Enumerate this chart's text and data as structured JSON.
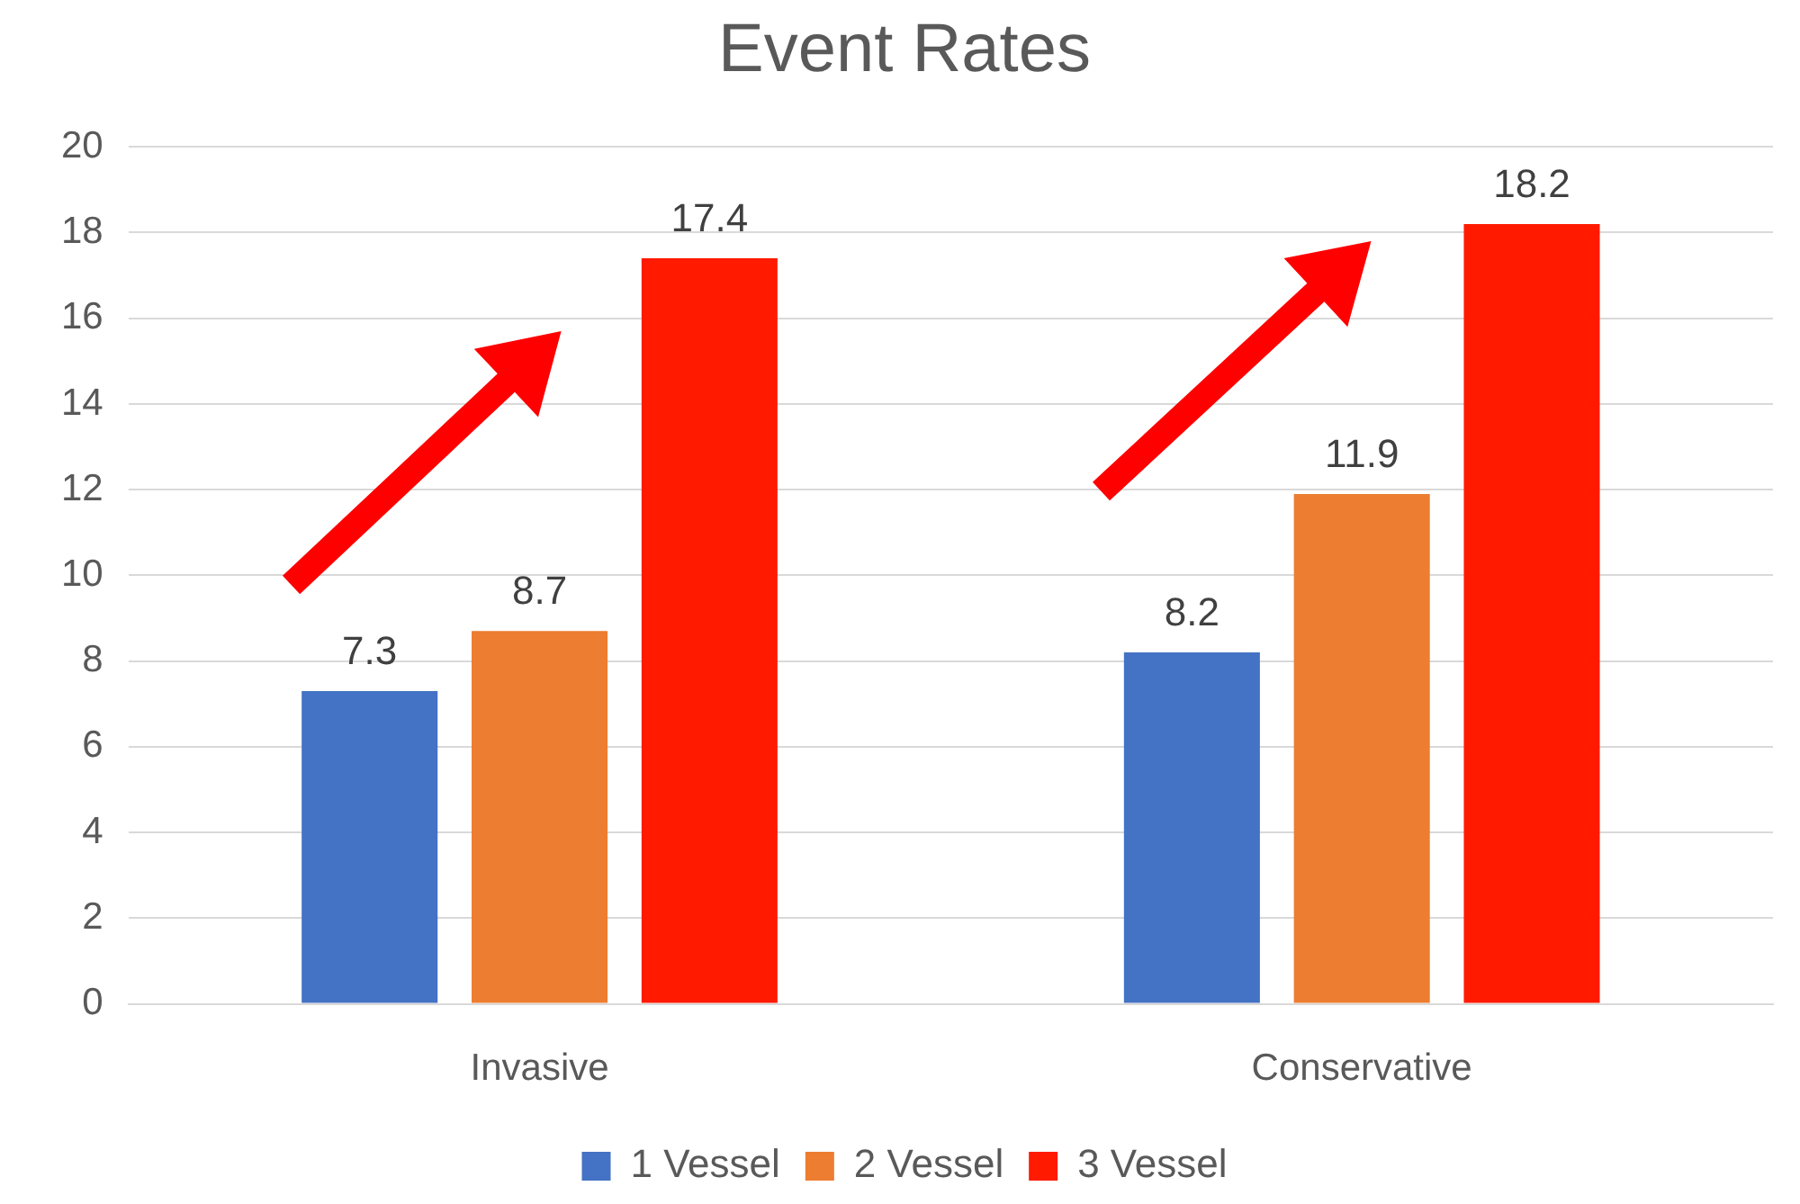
{
  "chart_data": {
    "type": "bar",
    "title": "Event Rates",
    "categories": [
      "Invasive",
      "Conservative"
    ],
    "series": [
      {
        "name": "1 Vessel",
        "color": "#4472c4",
        "values": [
          7.3,
          8.2
        ]
      },
      {
        "name": "2 Vessel",
        "color": "#ed7d31",
        "values": [
          8.7,
          11.9
        ]
      },
      {
        "name": "3 Vessel",
        "color": "#ff1a00",
        "values": [
          17.4,
          18.2
        ]
      }
    ],
    "ylim": [
      0,
      20
    ],
    "yticks": [
      0,
      2,
      4,
      6,
      8,
      10,
      12,
      14,
      16,
      18,
      20
    ],
    "grid": "y",
    "legend": "bottom",
    "data_labels": true
  }
}
